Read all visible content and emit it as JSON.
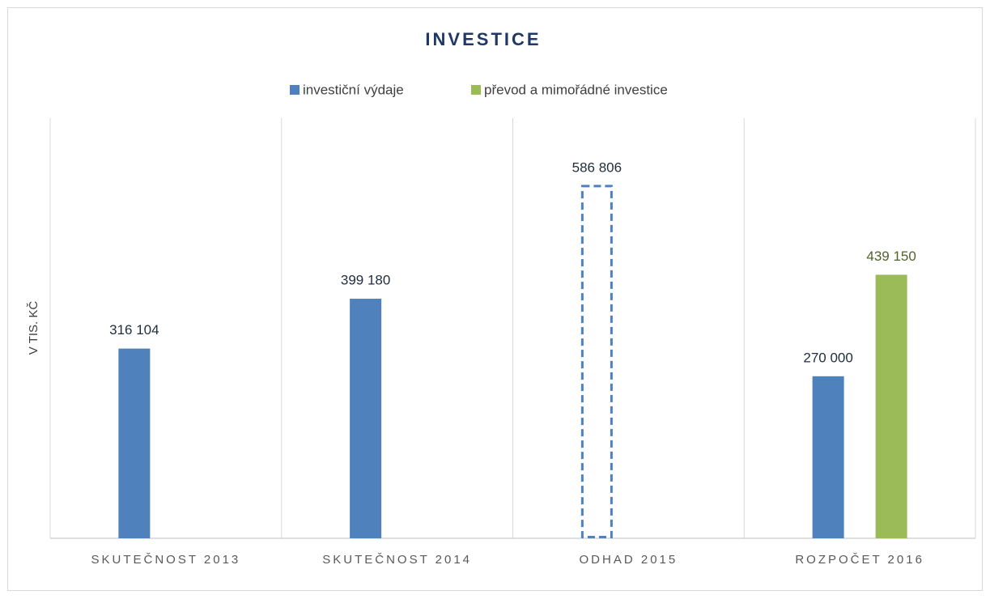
{
  "chart_data": {
    "type": "bar",
    "title": "INVESTICE",
    "y_label": "V TIS. KČ",
    "categories": [
      "SKUTEČNOST 2013",
      "SKUTEČNOST 2014",
      "ODHAD 2015",
      "ROZPOČET 2016"
    ],
    "series": [
      {
        "name": "investiční výdaje",
        "color": "#4f81bd",
        "values": [
          316104,
          399180,
          586806,
          270000
        ],
        "value_labels": [
          "316 104",
          "399 180",
          "586 806",
          "270 000"
        ],
        "label_color": "#1f2d3d",
        "outline_only": [
          false,
          false,
          true,
          false
        ]
      },
      {
        "name": "převod a mimořádné investice",
        "color": "#9bbb59",
        "values": [
          null,
          null,
          null,
          439150
        ],
        "value_labels": [
          null,
          null,
          null,
          "439 150"
        ],
        "label_color": "#4f6228",
        "outline_only": [
          false,
          false,
          false,
          false
        ]
      }
    ],
    "ylim": [
      0,
      700000
    ],
    "yticks": [],
    "grid": true,
    "legend": "top"
  }
}
